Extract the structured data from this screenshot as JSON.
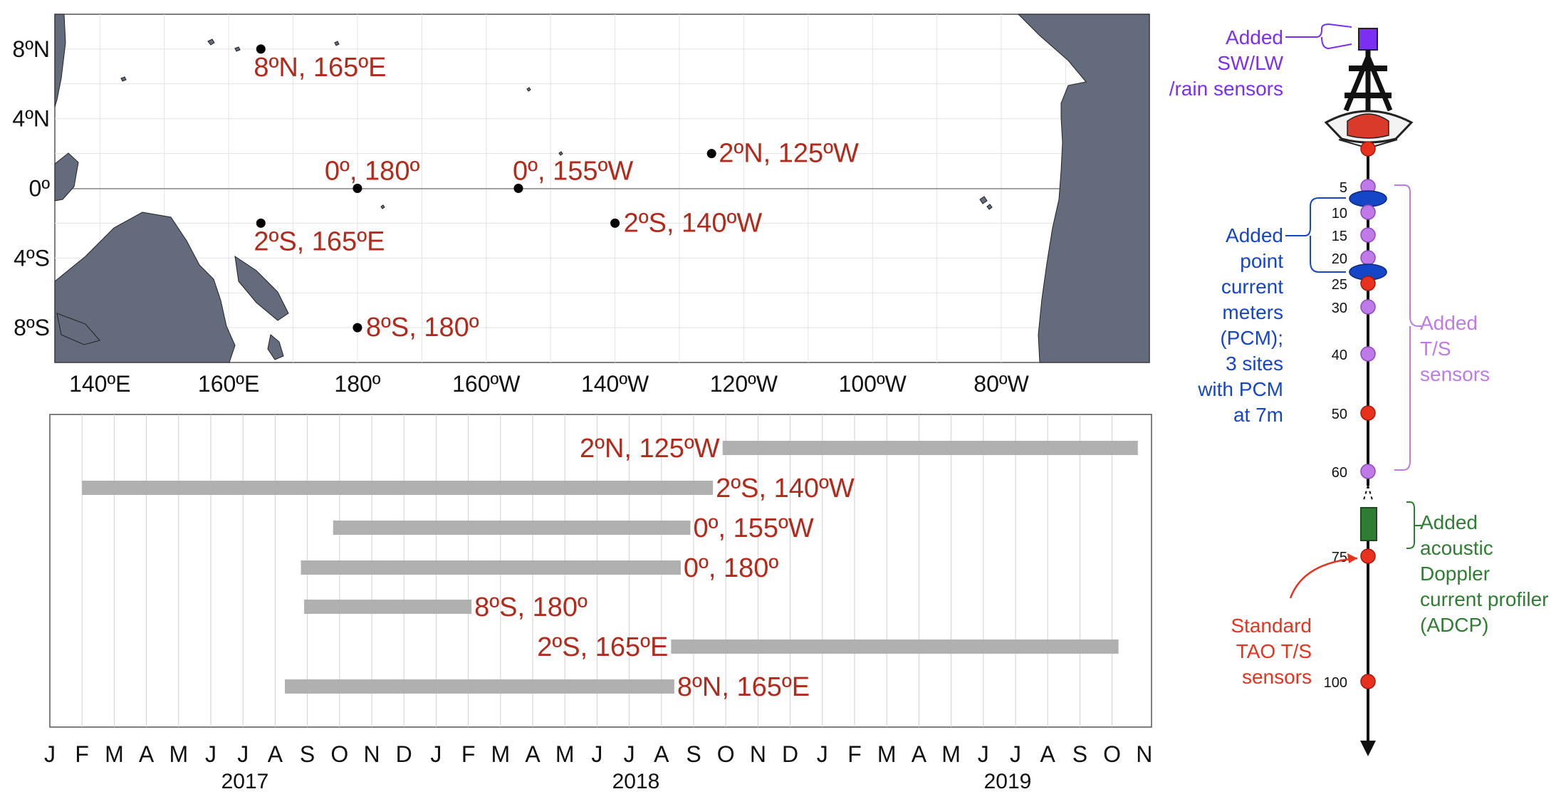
{
  "map": {
    "lat_labels": [
      "8ºN",
      "4ºN",
      "0º",
      "4ºS",
      "8ºS"
    ],
    "lat_values": [
      8,
      4,
      0,
      -4,
      -8
    ],
    "lon_labels": [
      "140ºE",
      "160ºE",
      "180º",
      "160ºW",
      "140ºW",
      "120ºW",
      "100ºW",
      "80ºW"
    ],
    "lon_values": [
      140,
      160,
      180,
      200,
      220,
      240,
      260,
      280
    ],
    "lon_range": [
      133,
      303
    ],
    "lat_range": [
      -10,
      10
    ],
    "sites": [
      {
        "label": "8ºN, 165ºE",
        "lon": 165,
        "lat": 8
      },
      {
        "label": "0º, 180º",
        "lon": 180,
        "lat": 0
      },
      {
        "label": "0º, 155ºW",
        "lon": 205,
        "lat": 0
      },
      {
        "label": "2ºN, 125ºW",
        "lon": 235,
        "lat": 2
      },
      {
        "label": "2ºS, 165ºE",
        "lon": 165,
        "lat": -2
      },
      {
        "label": "2ºS, 140ºW",
        "lon": 220,
        "lat": -2
      },
      {
        "label": "8ºS, 180º",
        "lon": 180,
        "lat": -8
      }
    ],
    "land_color": "#646b7d"
  },
  "timeline": {
    "month_labels": [
      "J",
      "F",
      "M",
      "A",
      "M",
      "J",
      "J",
      "A",
      "S",
      "O",
      "N",
      "D",
      "J",
      "F",
      "M",
      "A",
      "M",
      "J",
      "J",
      "A",
      "S",
      "O",
      "N",
      "D",
      "J",
      "F",
      "M",
      "A",
      "M",
      "J",
      "J",
      "A",
      "S",
      "O",
      "N"
    ],
    "year_labels": [
      "2017",
      "2018",
      "2019"
    ],
    "deployments": [
      {
        "site": "2ºN, 125ºW",
        "start": 20.9,
        "end": 33.8
      },
      {
        "site": "2ºS, 140ºW",
        "start": 1.0,
        "end": 20.6
      },
      {
        "site": "0º, 155ºW",
        "start": 8.8,
        "end": 19.9
      },
      {
        "site": "0º, 180º",
        "start": 7.8,
        "end": 19.6
      },
      {
        "site": "8ºS, 180º",
        "start": 7.9,
        "end": 13.1
      },
      {
        "site": "2ºS, 165ºE",
        "start": 19.3,
        "end": 33.2
      },
      {
        "site": "8ºN, 165ºE",
        "start": 7.3,
        "end": 19.4
      }
    ],
    "bar_color": "#b0b0b0"
  },
  "mooring": {
    "annotations": {
      "radiation": "Added SW/LW /rain sensors",
      "pcm": "Added point current meters (PCM); 3 sites with PCM at 7m",
      "ts": "Added T/S sensors",
      "adcp": "Added acoustic Doppler current profiler (ADCP)",
      "standard": "Standard TAO T/S sensors"
    },
    "depths": [
      "5",
      "10",
      "15",
      "20",
      "25",
      "30",
      "40",
      "50",
      "60",
      "75",
      "100"
    ],
    "colors": {
      "radiation": "#7b2ff2",
      "pcm": "#1546c8",
      "ts": "#c07ae8",
      "adcp": "#2e7d32",
      "standard": "#e8321e"
    }
  }
}
